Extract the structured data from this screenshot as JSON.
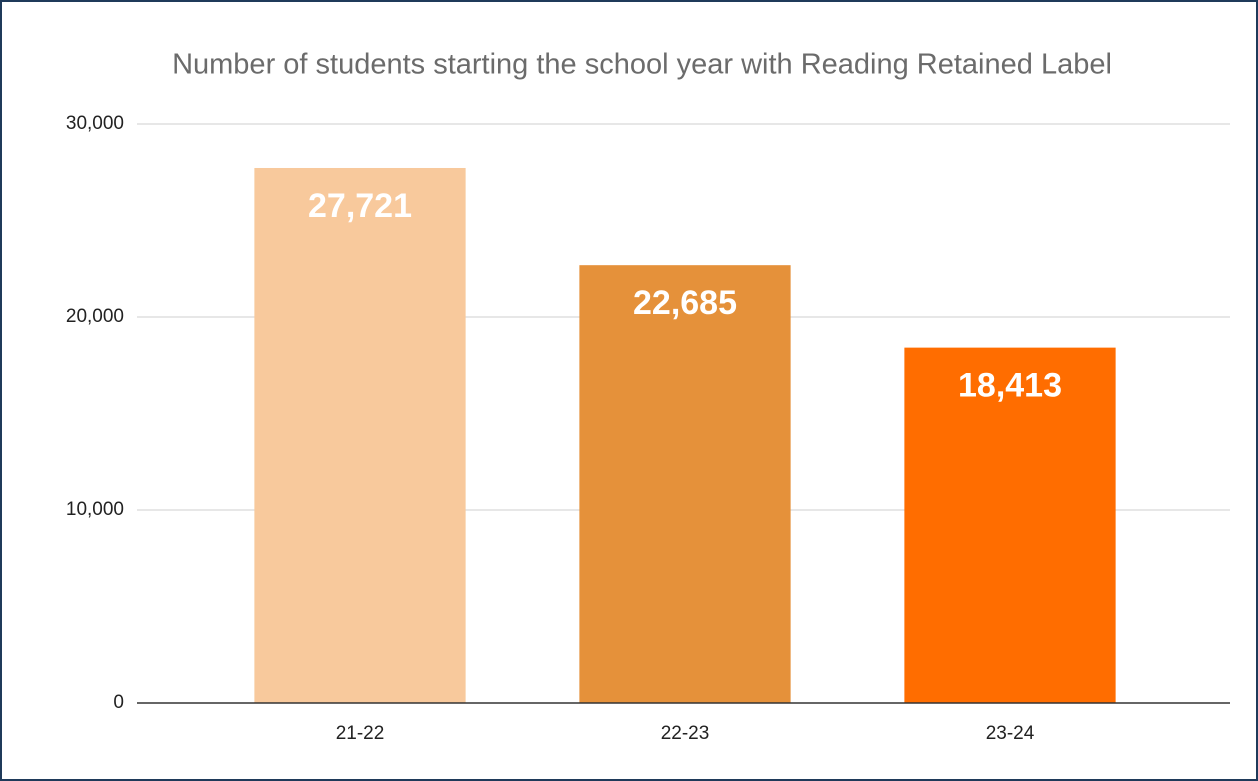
{
  "chart_data": {
    "type": "bar",
    "title": "Number of students starting the school year with Reading Retained Label",
    "categories": [
      "21-22",
      "22-23",
      "23-24"
    ],
    "values": [
      27721,
      22685,
      18413
    ],
    "value_labels": [
      "27,721",
      "22,685",
      "18,413"
    ],
    "colors": [
      "#f8c99c",
      "#e5913a",
      "#ff6d00"
    ],
    "ylim": [
      0,
      30000
    ],
    "yticks": [
      0,
      {
        "value": 10000,
        "label": "10,000"
      },
      {
        "value": 20000,
        "label": "20,000"
      },
      {
        "value": 30000,
        "label": "30,000"
      }
    ],
    "grid": true
  }
}
